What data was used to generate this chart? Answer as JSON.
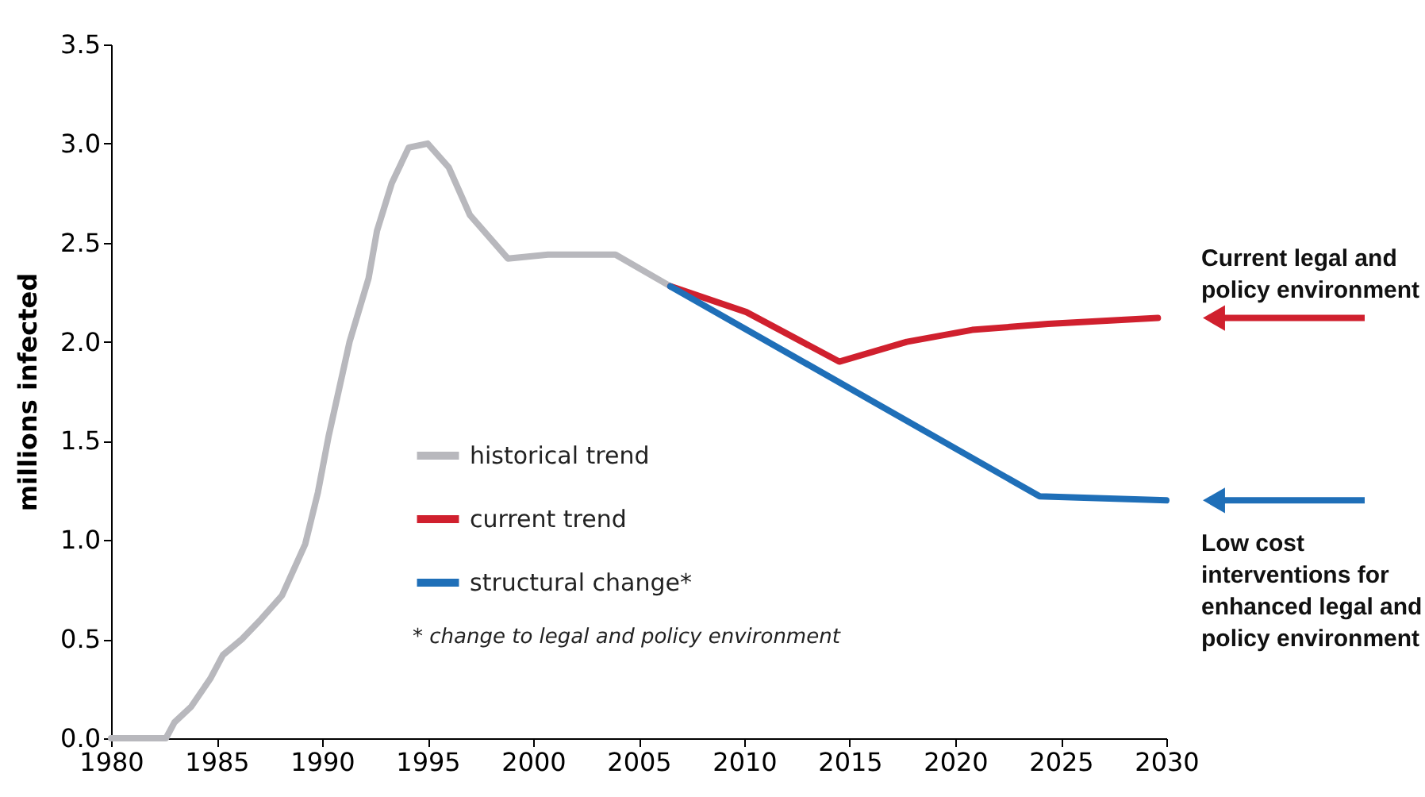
{
  "chart_data": {
    "type": "line",
    "ylabel": "millions infected",
    "xlim": [
      1980,
      2030
    ],
    "xticks": [
      1980,
      1985,
      1990,
      1995,
      2000,
      2005,
      2010,
      2015,
      2020,
      2025,
      2030
    ],
    "ylim": [
      0,
      3.5
    ],
    "yticks": [
      {
        "value": 0,
        "label": "0.0"
      },
      0.5,
      {
        "value": 1,
        "label": "1.0"
      },
      1.5,
      {
        "value": 2,
        "label": "2.0"
      },
      2.5,
      {
        "value": 3,
        "label": "3.0"
      },
      3.5
    ],
    "grid": false,
    "legend": "left",
    "marker": "none",
    "line_style": "solid",
    "series": [
      {
        "name": "historical trend",
        "color": "#b8b8bd",
        "x": [
          1980,
          1982.6,
          1983,
          1983.8,
          1984.7,
          1985.3,
          1986.2,
          1987.1,
          1988.1,
          1989.2,
          1989.8,
          1990.3,
          1991.3,
          1992.2,
          1992.6,
          1993.3,
          1994.1,
          1995.0,
          1996.0,
          1997.0,
          1998.8,
          2000.7,
          2003.9,
          2006.5
        ],
        "values": [
          0,
          0,
          0.08,
          0.16,
          0.3,
          0.42,
          0.5,
          0.6,
          0.72,
          0.98,
          1.24,
          1.52,
          2.0,
          2.32,
          2.56,
          2.8,
          2.98,
          3.0,
          2.88,
          2.64,
          2.42,
          2.44,
          2.44,
          2.28
        ]
      },
      {
        "name": "current trend",
        "color": "#d0202e",
        "x": [
          2006.5,
          2010.1,
          2014.5,
          2017.7,
          2020.8,
          2024.4,
          2029.6
        ],
        "values": [
          2.28,
          2.15,
          1.9,
          2.0,
          2.06,
          2.09,
          2.12
        ]
      },
      {
        "name": "structural change*",
        "color": "#1f6fb8",
        "x": [
          2006.5,
          2024.0,
          2030.0
        ],
        "values": [
          2.28,
          1.22,
          1.2
        ]
      }
    ],
    "annotations": [
      {
        "text": "Current legal and\npolicy environment",
        "x": 2029.6,
        "y": 2.12
      },
      {
        "text": "Low cost\ninterventions for\nenhanced legal and\npolicy environment",
        "x": 2030.0,
        "y": 1.2
      },
      "* change to legal and policy environment"
    ]
  }
}
